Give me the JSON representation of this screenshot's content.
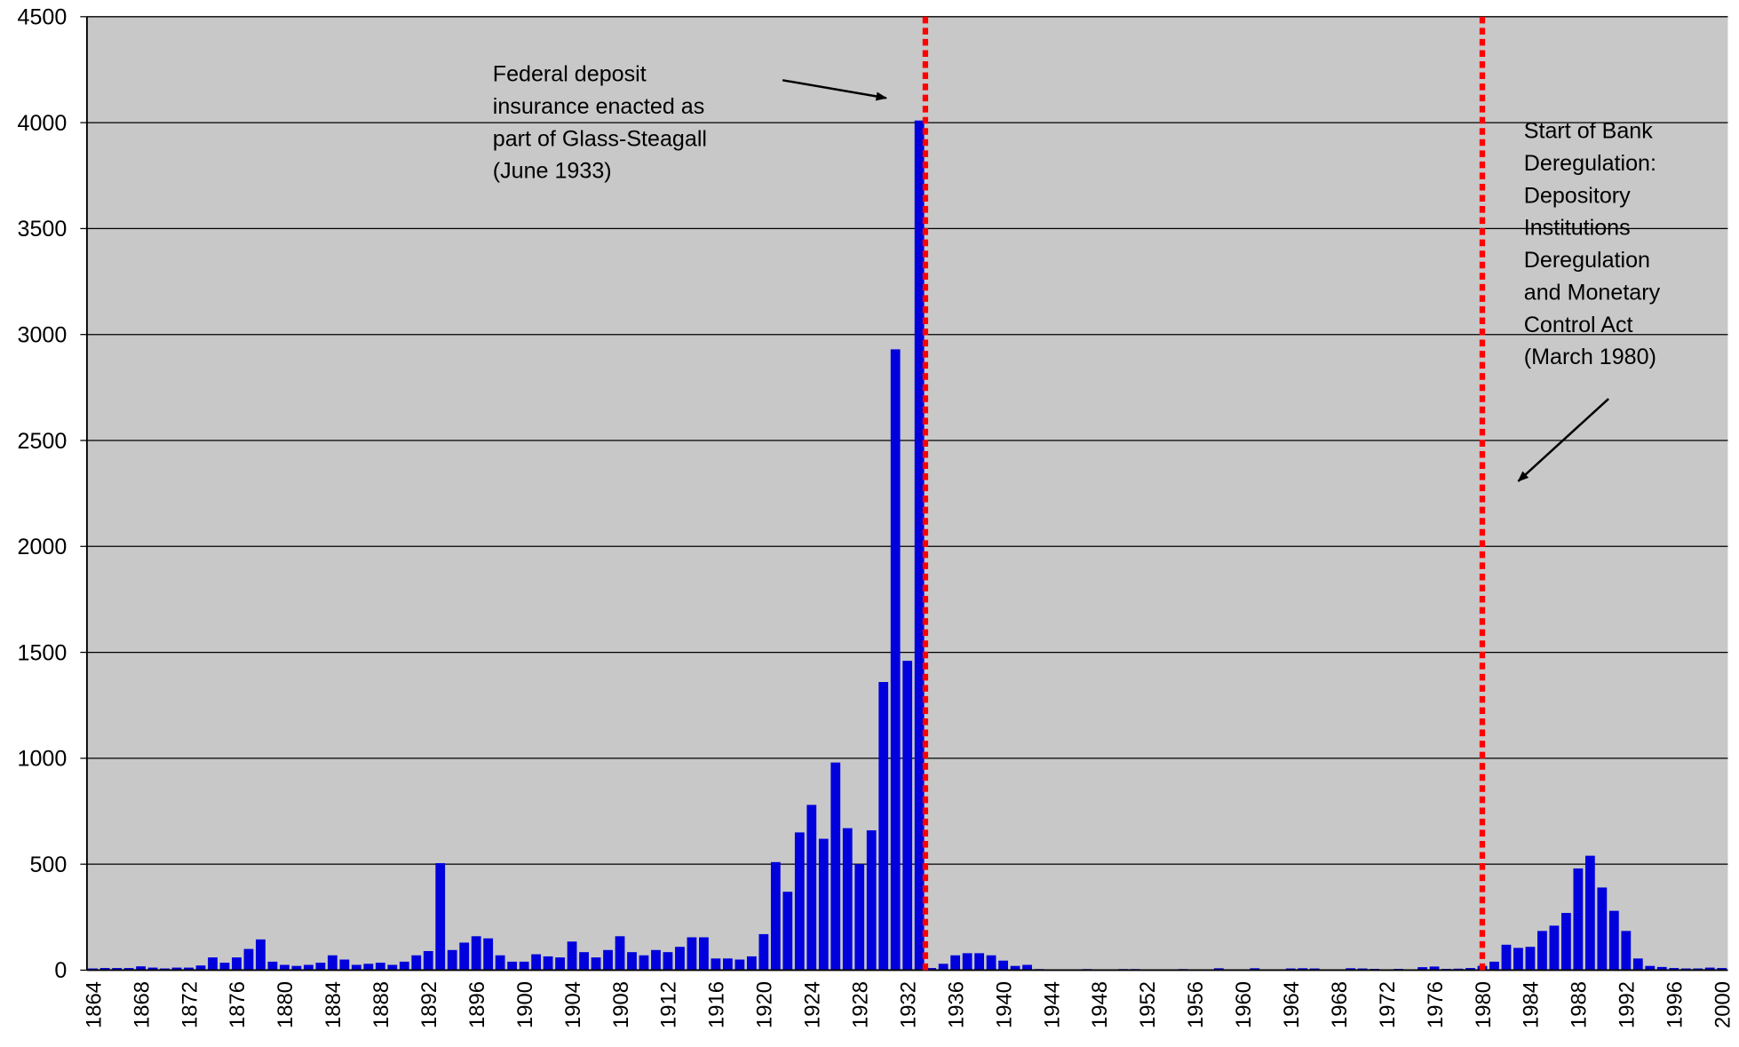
{
  "chart_data": {
    "type": "bar",
    "categories": [
      1864,
      null,
      null,
      null,
      1868,
      null,
      null,
      null,
      1872,
      null,
      null,
      null,
      1876,
      null,
      null,
      null,
      1880,
      null,
      null,
      null,
      1884,
      null,
      null,
      null,
      1888,
      null,
      null,
      null,
      1892,
      null,
      null,
      null,
      1896,
      null,
      null,
      null,
      1900,
      null,
      null,
      null,
      1904,
      null,
      null,
      null,
      1908,
      null,
      null,
      null,
      1912,
      null,
      null,
      null,
      1916,
      null,
      null,
      null,
      1920,
      null,
      null,
      null,
      1924,
      null,
      null,
      null,
      1928,
      null,
      null,
      null,
      1932,
      null,
      null,
      null,
      1936,
      null,
      null,
      null,
      1940,
      null,
      null,
      null,
      1944,
      null,
      null,
      null,
      1948,
      null,
      null,
      null,
      1952,
      null,
      null,
      null,
      1956,
      null,
      null,
      null,
      1960,
      null,
      null,
      null,
      1964,
      null,
      null,
      null,
      1968,
      null,
      null,
      null,
      1972,
      null,
      null,
      null,
      1976,
      null,
      null,
      null,
      1980,
      null,
      null,
      null,
      1984,
      null,
      null,
      null,
      1988,
      null,
      null,
      null,
      1992,
      null,
      null,
      null,
      1996,
      null,
      null,
      null,
      2000
    ],
    "values": [
      8,
      10,
      10,
      10,
      18,
      12,
      8,
      12,
      12,
      22,
      60,
      35,
      60,
      100,
      145,
      40,
      25,
      20,
      25,
      35,
      70,
      50,
      25,
      30,
      35,
      25,
      40,
      70,
      90,
      505,
      95,
      130,
      160,
      150,
      70,
      40,
      40,
      75,
      65,
      60,
      135,
      85,
      60,
      95,
      160,
      85,
      70,
      95,
      85,
      110,
      155,
      155,
      55,
      55,
      50,
      65,
      170,
      510,
      370,
      650,
      780,
      620,
      980,
      670,
      500,
      660,
      1360,
      2930,
      1460,
      4010,
      10,
      30,
      70,
      80,
      80,
      70,
      45,
      20,
      25,
      5,
      2,
      1,
      2,
      5,
      3,
      4,
      5,
      5,
      4,
      4,
      4,
      5,
      3,
      3,
      9,
      3,
      2,
      9,
      3,
      2,
      8,
      9,
      8,
      4,
      3,
      9,
      8,
      6,
      3,
      6,
      4,
      14,
      17,
      6,
      7,
      10,
      20,
      40,
      120,
      105,
      110,
      185,
      210,
      270,
      480,
      540,
      390,
      280,
      185,
      55,
      20,
      15,
      10,
      8,
      8,
      12,
      10
    ],
    "color": "#0000dd",
    "ylim": [
      0,
      4500
    ],
    "yticks": [
      0,
      500,
      1000,
      1500,
      2000,
      2500,
      3000,
      3500,
      4000,
      4500
    ],
    "grid": true,
    "reference_lines": [
      {
        "x": 1933.5,
        "color": "#ff0000"
      },
      {
        "x": 1980,
        "color": "#ff0000"
      }
    ],
    "annotations": [
      {
        "lines": [
          "Federal deposit",
          "insurance enacted as",
          "part of Glass-Steagall",
          "(June 1933)"
        ]
      },
      {
        "lines": [
          "Start of Bank",
          "Deregulation:",
          "Depository",
          "Institutions",
          "Deregulation",
          "and Monetary",
          "Control Act",
          "(March 1980)"
        ]
      }
    ]
  }
}
